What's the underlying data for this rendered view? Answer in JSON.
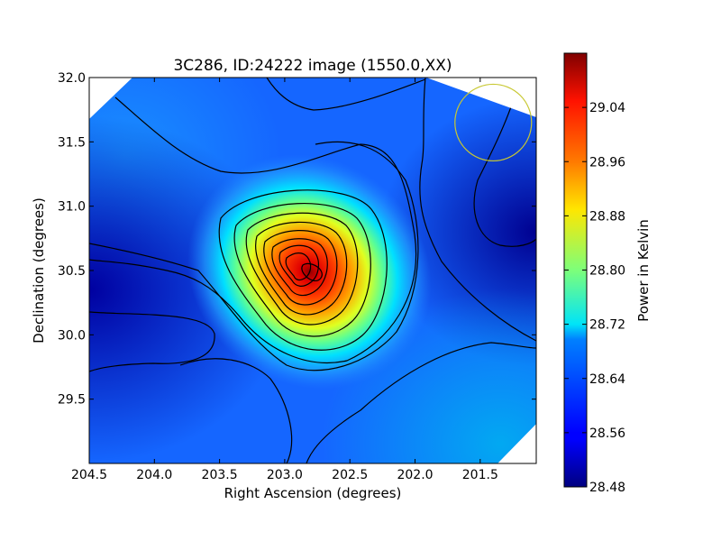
{
  "chart_data": {
    "type": "heatmap",
    "title": "3C286, ID:24222 image (1550.0,XX)",
    "xlabel": "Right Ascension (degrees)",
    "ylabel": "Declination (degrees)",
    "xlim": [
      204.5,
      201.07
    ],
    "ylim": [
      29.0,
      32.0
    ],
    "x_ticks": [
      "204.5",
      "204.0",
      "203.5",
      "203.0",
      "202.5",
      "202.0",
      "201.5"
    ],
    "y_ticks": [
      "32.0",
      "31.5",
      "31.0",
      "30.5",
      "30.0",
      "29.5"
    ],
    "peak": {
      "ra": 202.81,
      "dec": 30.49,
      "value": 29.1
    },
    "background_level": 28.6,
    "colorbar": {
      "label": "Power in Kelvin",
      "range": [
        28.48,
        29.12
      ],
      "ticks": [
        "29.04",
        "28.96",
        "28.88",
        "28.80",
        "28.72",
        "28.64",
        "28.56",
        "28.48"
      ],
      "colormap": "jet"
    },
    "contour_color": "#000000",
    "marker_circle": {
      "ra": 201.4,
      "dec": 31.65,
      "radius_deg": 0.3,
      "color": "#c8c832"
    },
    "grid": false
  }
}
